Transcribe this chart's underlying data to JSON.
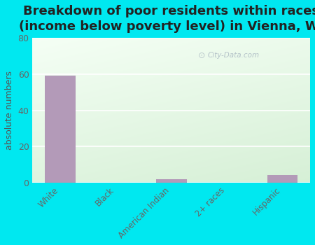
{
  "title": "Breakdown of poor residents within races\n(income below poverty level) in Vienna, WI",
  "categories": [
    "White",
    "Black",
    "American Indian",
    "2+ races",
    "Hispanic"
  ],
  "values": [
    59,
    0,
    2,
    0,
    4
  ],
  "bar_color": "#b39ab8",
  "ylabel": "absolute numbers",
  "ylim": [
    0,
    80
  ],
  "yticks": [
    0,
    20,
    40,
    60,
    80
  ],
  "bg_outer": "#00e8f0",
  "title_fontsize": 13,
  "title_color": "#222222",
  "watermark": "City-Data.com",
  "tick_color": "#666666",
  "ylabel_color": "#555555",
  "grid_color": "#ccddcc",
  "bg_grad_topleft": [
    0.96,
    1.0,
    0.96
  ],
  "bg_grad_botright": [
    0.84,
    0.94,
    0.84
  ]
}
